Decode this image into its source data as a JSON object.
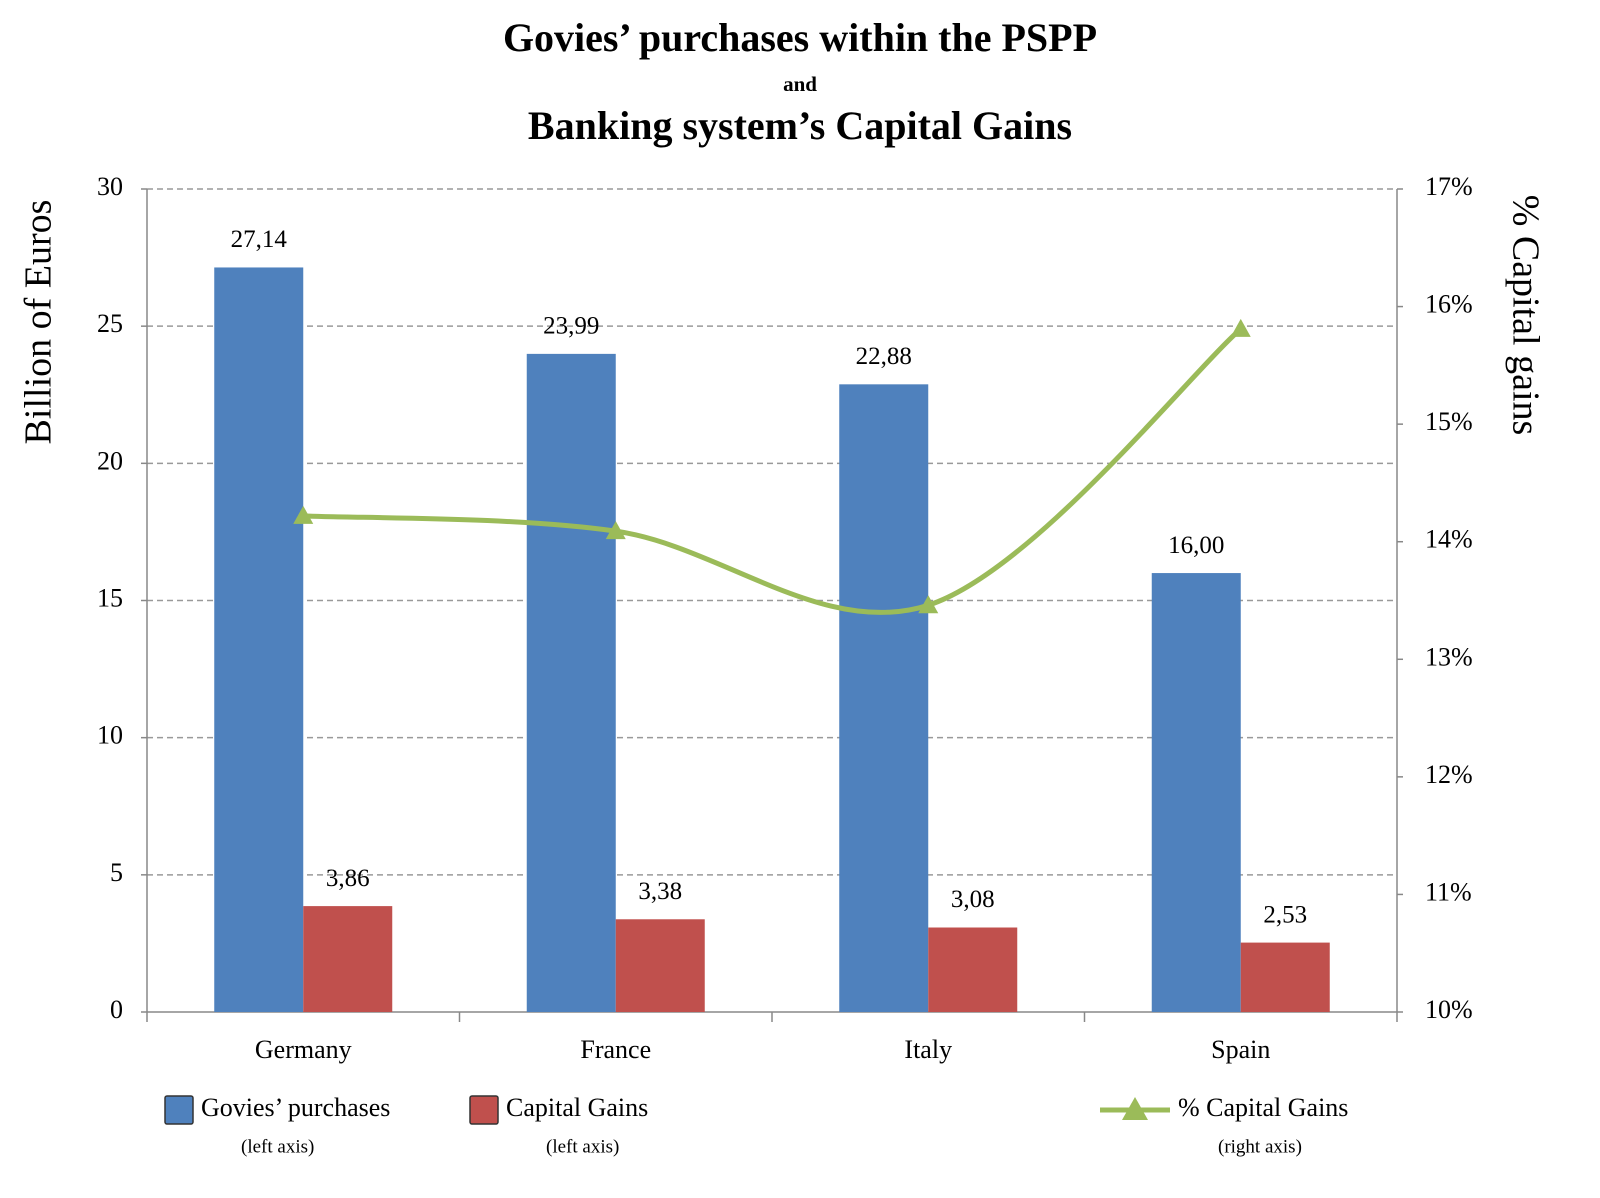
{
  "chart_data": {
    "type": "bar",
    "title": "Govies’ purchases within the PSPP",
    "title_connector": "and",
    "subtitle": "Banking system’s Capital Gains",
    "y_label": "Billion of Euros",
    "y2_label": "% Capital gains",
    "categories": [
      "Germany",
      "France",
      "Italy",
      "Spain"
    ],
    "series": [
      {
        "name": "Govies’ purchases",
        "legend_note": "(left axis)",
        "type": "bar",
        "color": "#4f81bd",
        "values": [
          27.14,
          23.99,
          22.88,
          16.0
        ],
        "value_labels": [
          "27,14",
          "23,99",
          "22,88",
          "16,00"
        ]
      },
      {
        "name": "Capital Gains",
        "legend_note": "(left axis)",
        "type": "bar",
        "color": "#c0504d",
        "values": [
          3.86,
          3.38,
          3.08,
          2.53
        ],
        "value_labels": [
          "3,86",
          "3,38",
          "3,08",
          "2,53"
        ]
      },
      {
        "name": "% Capital Gains",
        "legend_note": "(right axis)",
        "type": "line",
        "axis": "y2",
        "color": "#9bbb59",
        "values": [
          14.22,
          14.09,
          13.46,
          15.81
        ]
      }
    ],
    "ylim": [
      0,
      30
    ],
    "yticks": [
      0,
      5,
      10,
      15,
      20,
      25,
      30
    ],
    "y2lim": [
      10,
      17
    ],
    "y2ticks": [
      {
        "value": 10,
        "label": "10%"
      },
      {
        "value": 11,
        "label": "11%"
      },
      {
        "value": 12,
        "label": "12%"
      },
      {
        "value": 13,
        "label": "13%"
      },
      {
        "value": 14,
        "label": "14%"
      },
      {
        "value": 15,
        "label": "15%"
      },
      {
        "value": 16,
        "label": "16%"
      },
      {
        "value": 17,
        "label": "17%"
      }
    ],
    "grid": true
  }
}
